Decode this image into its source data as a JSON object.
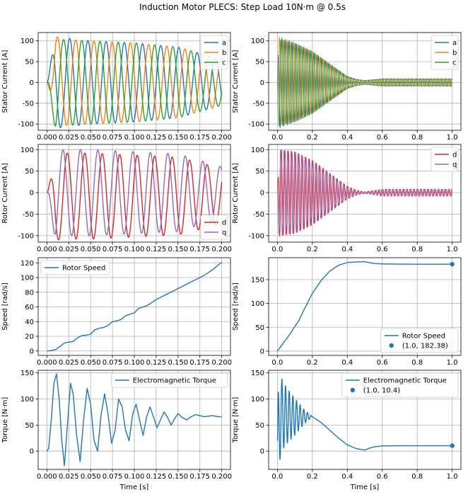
{
  "figure": {
    "title": "Induction Motor PLECS: Step Load 10N·m @ 0.5s"
  },
  "colors": {
    "a": "#1f77b4",
    "b": "#ff7f0e",
    "c": "#2ca02c",
    "d": "#d62728",
    "q": "#9467bd",
    "speed": "#1f77b4",
    "torque": "#1f77b4",
    "grid": "#b0b0b0"
  },
  "chart_data": [
    {
      "id": "p0",
      "type": "line",
      "window": "short",
      "ylabel": "Stator Current [A]",
      "xlabel": "",
      "xlim": [
        -0.01,
        0.21
      ],
      "ylim": [
        -115,
        120
      ],
      "xticks": [
        "0.000",
        "0.025",
        "0.050",
        "0.075",
        "0.100",
        "0.125",
        "0.150",
        "0.175",
        "0.200"
      ],
      "yticks": [
        "-100",
        "-50",
        "0",
        "50",
        "100"
      ],
      "legend": "top-right",
      "grid": true,
      "series": [
        {
          "name": "a",
          "color_key": "a",
          "envelope": [
            [
              0,
              0
            ],
            [
              0.01,
              110
            ],
            [
              0.05,
              100
            ],
            [
              0.1,
              95
            ],
            [
              0.15,
              85
            ],
            [
              0.2,
              55
            ]
          ],
          "freq_hz": 48,
          "phase_deg": 0
        },
        {
          "name": "b",
          "color_key": "b",
          "envelope": [
            [
              0,
              0
            ],
            [
              0.01,
              105
            ],
            [
              0.05,
              100
            ],
            [
              0.1,
              95
            ],
            [
              0.15,
              85
            ],
            [
              0.2,
              55
            ]
          ],
          "freq_hz": 48,
          "phase_deg": -120
        },
        {
          "name": "c",
          "color_key": "c",
          "envelope": [
            [
              0,
              0
            ],
            [
              0.01,
              105
            ],
            [
              0.05,
              100
            ],
            [
              0.1,
              95
            ],
            [
              0.15,
              85
            ],
            [
              0.2,
              55
            ]
          ],
          "freq_hz": 48,
          "phase_deg": 120
        }
      ]
    },
    {
      "id": "p1",
      "type": "line",
      "window": "long",
      "ylabel": "Stator Current [A]",
      "xlabel": "",
      "xlim": [
        -0.05,
        1.05
      ],
      "ylim": [
        -115,
        120
      ],
      "xticks": [
        "0.0",
        "0.2",
        "0.4",
        "0.6",
        "0.8",
        "1.0"
      ],
      "yticks": [
        "-100",
        "-50",
        "0",
        "50",
        "100"
      ],
      "legend": "top-right",
      "grid": true,
      "series": [
        {
          "name": "a",
          "color_key": "a",
          "envelope": [
            [
              0,
              0
            ],
            [
              0.01,
              110
            ],
            [
              0.1,
              95
            ],
            [
              0.2,
              75
            ],
            [
              0.3,
              45
            ],
            [
              0.4,
              15
            ],
            [
              0.45,
              8
            ],
            [
              0.5,
              5
            ],
            [
              0.6,
              9
            ],
            [
              1.0,
              9
            ]
          ],
          "freq_hz": 48,
          "phase_deg": 0
        },
        {
          "name": "b",
          "color_key": "b",
          "envelope": [
            [
              0,
              0
            ],
            [
              0.01,
              105
            ],
            [
              0.1,
              95
            ],
            [
              0.2,
              75
            ],
            [
              0.3,
              45
            ],
            [
              0.4,
              15
            ],
            [
              0.45,
              8
            ],
            [
              0.5,
              5
            ],
            [
              0.6,
              9
            ],
            [
              1.0,
              9
            ]
          ],
          "freq_hz": 48,
          "phase_deg": -120
        },
        {
          "name": "c",
          "color_key": "c",
          "envelope": [
            [
              0,
              0
            ],
            [
              0.01,
              105
            ],
            [
              0.1,
              95
            ],
            [
              0.2,
              75
            ],
            [
              0.3,
              45
            ],
            [
              0.4,
              15
            ],
            [
              0.45,
              8
            ],
            [
              0.5,
              5
            ],
            [
              0.6,
              9
            ],
            [
              1.0,
              9
            ]
          ],
          "freq_hz": 48,
          "phase_deg": 120
        }
      ]
    },
    {
      "id": "p2",
      "type": "line",
      "window": "short",
      "ylabel": "Rotor Current [A]",
      "xlabel": "",
      "xlim": [
        -0.01,
        0.21
      ],
      "ylim": [
        -115,
        112
      ],
      "xticks": [
        "0.000",
        "0.025",
        "0.050",
        "0.075",
        "0.100",
        "0.125",
        "0.150",
        "0.175",
        "0.200"
      ],
      "yticks": [
        "-100",
        "-50",
        "0",
        "50",
        "100"
      ],
      "legend": "bottom-right",
      "grid": true,
      "series": [
        {
          "name": "d",
          "color_key": "d",
          "envelope": [
            [
              0,
              0
            ],
            [
              0.01,
              100
            ],
            [
              0.05,
              100
            ],
            [
              0.1,
              95
            ],
            [
              0.15,
              90
            ],
            [
              0.2,
              65
            ]
          ],
          "freq_hz": 50,
          "phase_deg": 30,
          "offset": -8
        },
        {
          "name": "q",
          "color_key": "q",
          "envelope": [
            [
              0,
              0
            ],
            [
              0.01,
              100
            ],
            [
              0.05,
              100
            ],
            [
              0.1,
              95
            ],
            [
              0.15,
              90
            ],
            [
              0.2,
              60
            ]
          ],
          "freq_hz": 50,
          "phase_deg": 120,
          "offset": 0
        }
      ]
    },
    {
      "id": "p3",
      "type": "line",
      "window": "long",
      "ylabel": "Rotor Current [A]",
      "xlabel": "",
      "xlim": [
        -0.05,
        1.05
      ],
      "ylim": [
        -115,
        112
      ],
      "xticks": [
        "0.0",
        "0.2",
        "0.4",
        "0.6",
        "0.8",
        "1.0"
      ],
      "yticks": [
        "-100",
        "-50",
        "0",
        "50",
        "100"
      ],
      "legend": "top-right",
      "grid": true,
      "series": [
        {
          "name": "d",
          "color_key": "d",
          "envelope": [
            [
              0,
              0
            ],
            [
              0.01,
              100
            ],
            [
              0.1,
              95
            ],
            [
              0.2,
              75
            ],
            [
              0.3,
              45
            ],
            [
              0.4,
              15
            ],
            [
              0.45,
              6
            ],
            [
              0.5,
              2
            ],
            [
              0.6,
              8
            ],
            [
              1.0,
              8
            ]
          ],
          "freq_hz": 50,
          "phase_deg": 30,
          "offset": 0
        },
        {
          "name": "q",
          "color_key": "q",
          "envelope": [
            [
              0,
              0
            ],
            [
              0.01,
              100
            ],
            [
              0.1,
              95
            ],
            [
              0.2,
              75
            ],
            [
              0.3,
              45
            ],
            [
              0.4,
              15
            ],
            [
              0.45,
              6
            ],
            [
              0.5,
              2
            ],
            [
              0.6,
              8
            ],
            [
              1.0,
              8
            ]
          ],
          "freq_hz": 50,
          "phase_deg": 120,
          "offset": 0
        }
      ]
    },
    {
      "id": "p4",
      "type": "line",
      "window": "short",
      "ylabel": "Speed [rad/s]",
      "xlabel": "",
      "xlim": [
        -0.01,
        0.21
      ],
      "ylim": [
        -6,
        127
      ],
      "xticks": [
        "0.000",
        "0.025",
        "0.050",
        "0.075",
        "0.100",
        "0.125",
        "0.150",
        "0.175",
        "0.200"
      ],
      "yticks": [
        "0",
        "20",
        "40",
        "60",
        "80",
        "100",
        "120"
      ],
      "legend": "top-left",
      "grid": true,
      "series": [
        {
          "name": "Rotor Speed",
          "color_key": "speed",
          "x": [
            0,
            0.005,
            0.01,
            0.015,
            0.02,
            0.025,
            0.03,
            0.035,
            0.04,
            0.045,
            0.05,
            0.055,
            0.06,
            0.065,
            0.07,
            0.075,
            0.08,
            0.085,
            0.09,
            0.095,
            0.1,
            0.105,
            0.11,
            0.115,
            0.12,
            0.125,
            0.13,
            0.135,
            0.14,
            0.145,
            0.15,
            0.155,
            0.16,
            0.165,
            0.17,
            0.175,
            0.18,
            0.185,
            0.19,
            0.195,
            0.2
          ],
          "y": [
            0,
            0.5,
            2,
            6,
            11,
            12,
            13,
            18,
            21,
            21.5,
            23,
            29,
            31,
            32,
            35,
            40,
            41,
            43,
            48,
            50,
            52,
            58,
            60,
            62,
            66,
            70,
            73,
            76,
            79,
            82,
            85,
            88,
            91,
            94,
            97,
            100,
            103,
            107,
            111,
            116,
            121
          ]
        }
      ]
    },
    {
      "id": "p5",
      "type": "line",
      "window": "long",
      "ylabel": "Speed [rad/s]",
      "xlabel": "",
      "xlim": [
        -0.05,
        1.05
      ],
      "ylim": [
        -9,
        196
      ],
      "xticks": [
        "0.0",
        "0.2",
        "0.4",
        "0.6",
        "0.8",
        "1.0"
      ],
      "yticks": [
        "0",
        "50",
        "100",
        "150"
      ],
      "legend": "bottom-right",
      "grid": true,
      "series": [
        {
          "name": "Rotor Speed",
          "color_key": "speed",
          "x": [
            0,
            0.02,
            0.05,
            0.08,
            0.1,
            0.12,
            0.15,
            0.2,
            0.25,
            0.3,
            0.35,
            0.4,
            0.45,
            0.5,
            0.55,
            0.6,
            0.7,
            0.8,
            0.9,
            1.0
          ],
          "y": [
            0,
            10,
            25,
            40,
            52,
            62,
            85,
            121,
            148,
            168,
            180,
            186,
            187,
            187.5,
            184,
            183,
            182.5,
            182.4,
            182.4,
            182.38
          ]
        },
        {
          "name": "(1.0, 182.38)",
          "color_key": "speed",
          "marker": true,
          "x": [
            1.0
          ],
          "y": [
            182.38
          ]
        }
      ]
    },
    {
      "id": "p6",
      "type": "line",
      "window": "short",
      "ylabel": "Torque [N·m]",
      "xlabel": "Time [s]",
      "xlim": [
        -0.01,
        0.21
      ],
      "ylim": [
        -35,
        155
      ],
      "xticks": [
        "0.000",
        "0.025",
        "0.050",
        "0.075",
        "0.100",
        "0.125",
        "0.150",
        "0.175",
        "0.200"
      ],
      "yticks": [
        "0",
        "50",
        "100",
        "150"
      ],
      "legend": "top-right",
      "grid": true,
      "series": [
        {
          "name": "Electromagnetic Torque",
          "color_key": "torque",
          "x": [
            0,
            0.002,
            0.005,
            0.008,
            0.011,
            0.014,
            0.017,
            0.02,
            0.023,
            0.027,
            0.03,
            0.034,
            0.038,
            0.042,
            0.046,
            0.05,
            0.054,
            0.058,
            0.062,
            0.066,
            0.07,
            0.074,
            0.078,
            0.082,
            0.086,
            0.09,
            0.094,
            0.098,
            0.102,
            0.106,
            0.11,
            0.114,
            0.118,
            0.122,
            0.126,
            0.13,
            0.134,
            0.138,
            0.142,
            0.146,
            0.15,
            0.155,
            0.16,
            0.165,
            0.17,
            0.175,
            0.18,
            0.185,
            0.19,
            0.195,
            0.2
          ],
          "y": [
            0,
            5,
            60,
            130,
            148,
            100,
            20,
            -28,
            40,
            130,
            110,
            30,
            -20,
            60,
            120,
            90,
            20,
            0,
            70,
            110,
            70,
            15,
            40,
            100,
            85,
            40,
            20,
            70,
            90,
            60,
            30,
            65,
            85,
            65,
            45,
            60,
            75,
            65,
            50,
            62,
            72,
            64,
            60,
            66,
            70,
            68,
            66,
            67,
            68,
            66,
            66
          ]
        }
      ]
    },
    {
      "id": "p7",
      "type": "line",
      "window": "long",
      "ylabel": "Torque [N·m]",
      "xlabel": "Time [s]",
      "xlim": [
        -0.05,
        1.05
      ],
      "ylim": [
        -35,
        155
      ],
      "xticks": [
        "0.0",
        "0.2",
        "0.4",
        "0.6",
        "0.8",
        "1.0"
      ],
      "yticks": [
        "0",
        "50",
        "100",
        "150"
      ],
      "legend": "top-right",
      "grid": true,
      "series": [
        {
          "name": "Electromagnetic Torque",
          "color_key": "torque",
          "x": [
            0,
            0.2,
            0.25,
            0.3,
            0.35,
            0.4,
            0.45,
            0.5,
            0.52,
            0.55,
            0.6,
            0.7,
            0.8,
            0.9,
            1.0
          ],
          "y": [
            0,
            66,
            55,
            40,
            25,
            12,
            5,
            2,
            5,
            8,
            10,
            10.4,
            10.4,
            10.4,
            10.4
          ],
          "oscillation": {
            "t_end": 0.2,
            "freq_hz": 48,
            "envelope": [
              [
                0,
                0
              ],
              [
                0.005,
                80
              ],
              [
                0.05,
                55
              ],
              [
                0.1,
                35
              ],
              [
                0.15,
                15
              ],
              [
                0.2,
                0
              ]
            ],
            "base": [
              [
                0,
                20
              ],
              [
                0.02,
                70
              ],
              [
                0.05,
                68
              ],
              [
                0.1,
                66
              ],
              [
                0.2,
                66
              ]
            ]
          }
        },
        {
          "name": "(1.0, 10.4)",
          "color_key": "torque",
          "marker": true,
          "x": [
            1.0
          ],
          "y": [
            10.4
          ]
        }
      ]
    }
  ]
}
